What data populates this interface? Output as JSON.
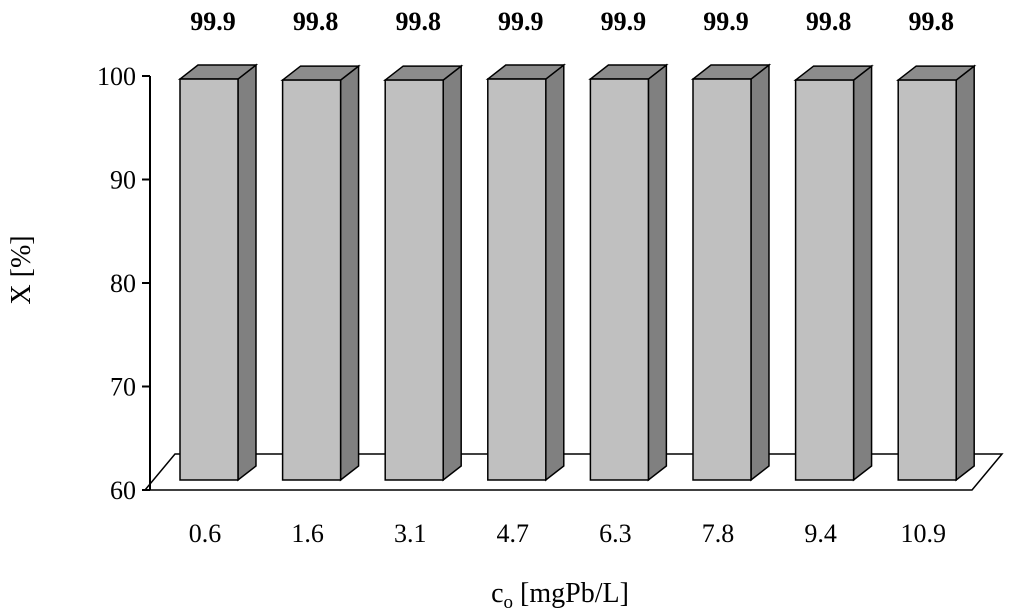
{
  "chart_data": {
    "type": "bar",
    "categories": [
      "0.6",
      "1.6",
      "3.1",
      "4.7",
      "6.3",
      "7.8",
      "9.4",
      "10.9"
    ],
    "values": [
      99.9,
      99.8,
      99.8,
      99.9,
      99.9,
      99.9,
      99.8,
      99.8
    ],
    "data_labels": [
      "99.9",
      "99.8",
      "99.8",
      "99.9",
      "99.9",
      "99.9",
      "99.8",
      "99.8"
    ],
    "ylabel": "X [%]",
    "xlabel_main": "c",
    "xlabel_sub": "o",
    "xlabel_rest": " [mgPb/L]",
    "ylim": [
      60,
      100
    ],
    "yticks": [
      "60",
      "70",
      "80",
      "90",
      "100"
    ],
    "style": "3d-bar",
    "grid": false,
    "colors": {
      "front": "#c0c0c0",
      "side": "#808080",
      "top": "#8c8c8c",
      "stroke": "#000000"
    }
  }
}
